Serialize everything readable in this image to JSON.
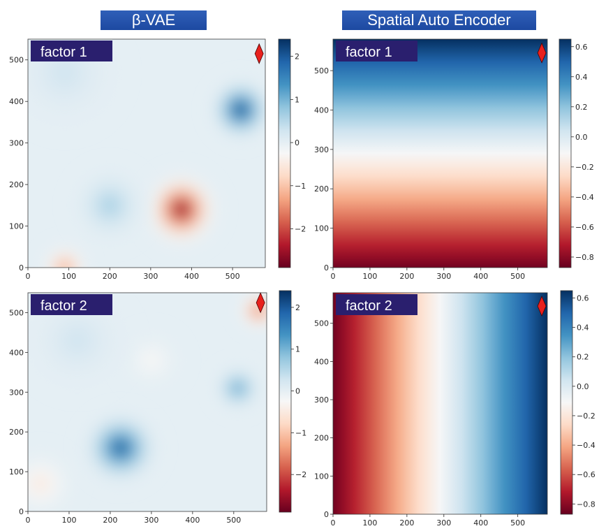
{
  "titles": {
    "left": "β-VAE",
    "right": "Spatial Auto Encoder"
  },
  "colors": {
    "title_bg": "#1f4ea8",
    "label_bg": "#2a1f6e",
    "marker": "#e8211d",
    "map_low": "#67001f",
    "map_mid": "#f7f7f7",
    "map_high": "#053061"
  },
  "chart_data": [
    {
      "type": "heatmap",
      "name": "β-VAE factor 1",
      "label": "factor 1",
      "xlim": [
        0,
        580
      ],
      "ylim": [
        0,
        550
      ],
      "xticks": [
        "0",
        "100",
        "200",
        "300",
        "400",
        "500"
      ],
      "yticks": [
        "0",
        "100",
        "200",
        "300",
        "400",
        "500"
      ],
      "colorbar_range": [
        -2.9,
        2.4
      ],
      "colorbar_ticks": [
        "2",
        "1",
        "0",
        "−1",
        "−2"
      ],
      "blobs": [
        {
          "x": 520,
          "y": 380,
          "value": 2.4,
          "spread": 90
        },
        {
          "x": 375,
          "y": 140,
          "value": -2.9,
          "spread": 110
        },
        {
          "x": 90,
          "y": 0,
          "value": -1.5,
          "spread": 70
        },
        {
          "x": 200,
          "y": 150,
          "value": 0.7,
          "spread": 110
        },
        {
          "x": 90,
          "y": 470,
          "value": 0.3,
          "spread": 160
        }
      ],
      "marker": {
        "x": 565,
        "y": 515
      }
    },
    {
      "type": "heatmap",
      "name": "Spatial Auto Encoder factor 1",
      "label": "factor 1",
      "gradient": "vertical",
      "xlim": [
        0,
        580
      ],
      "ylim": [
        0,
        580
      ],
      "xticks": [
        "0",
        "100",
        "200",
        "300",
        "400",
        "500"
      ],
      "yticks": [
        "0",
        "100",
        "200",
        "300",
        "400",
        "500"
      ],
      "value_range": [
        -0.85,
        0.65
      ],
      "colorbar_range": [
        -0.87,
        0.65
      ],
      "colorbar_ticks": [
        "0.6",
        "0.4",
        "0.2",
        "0.0",
        "−0.2",
        "−0.4",
        "−0.6",
        "−0.8"
      ],
      "marker": {
        "x": 565,
        "y": 545
      }
    },
    {
      "type": "heatmap",
      "name": "β-VAE factor 2",
      "label": "factor 2",
      "xlim": [
        0,
        580
      ],
      "ylim": [
        0,
        550
      ],
      "xticks": [
        "0",
        "100",
        "200",
        "300",
        "400",
        "500"
      ],
      "yticks": [
        "0",
        "100",
        "200",
        "300",
        "400",
        "500"
      ],
      "colorbar_range": [
        -2.9,
        2.4
      ],
      "colorbar_ticks": [
        "2",
        "1",
        "0",
        "−1",
        "−2"
      ],
      "blobs": [
        {
          "x": 225,
          "y": 160,
          "value": 2.2,
          "spread": 110
        },
        {
          "x": 510,
          "y": 310,
          "value": 1.3,
          "spread": 70
        },
        {
          "x": 560,
          "y": 505,
          "value": -2.0,
          "spread": 60
        },
        {
          "x": 30,
          "y": 70,
          "value": -0.6,
          "spread": 100
        },
        {
          "x": 300,
          "y": 380,
          "value": -0.3,
          "spread": 90
        },
        {
          "x": 120,
          "y": 430,
          "value": 0.3,
          "spread": 150
        }
      ],
      "marker": {
        "x": 565,
        "y": 525
      }
    },
    {
      "type": "heatmap",
      "name": "Spatial Auto Encoder factor 2",
      "label": "factor 2",
      "gradient": "horizontal",
      "xlim": [
        0,
        580
      ],
      "ylim": [
        0,
        580
      ],
      "xticks": [
        "0",
        "100",
        "200",
        "300",
        "400",
        "500"
      ],
      "yticks": [
        "0",
        "100",
        "200",
        "300",
        "400",
        "500"
      ],
      "value_range": [
        -0.85,
        0.65
      ],
      "colorbar_range": [
        -0.87,
        0.65
      ],
      "colorbar_ticks": [
        "0.6",
        "0.4",
        "0.2",
        "0.0",
        "−0.2",
        "−0.4",
        "−0.6",
        "−0.8"
      ],
      "marker": {
        "x": 565,
        "y": 545
      }
    }
  ]
}
